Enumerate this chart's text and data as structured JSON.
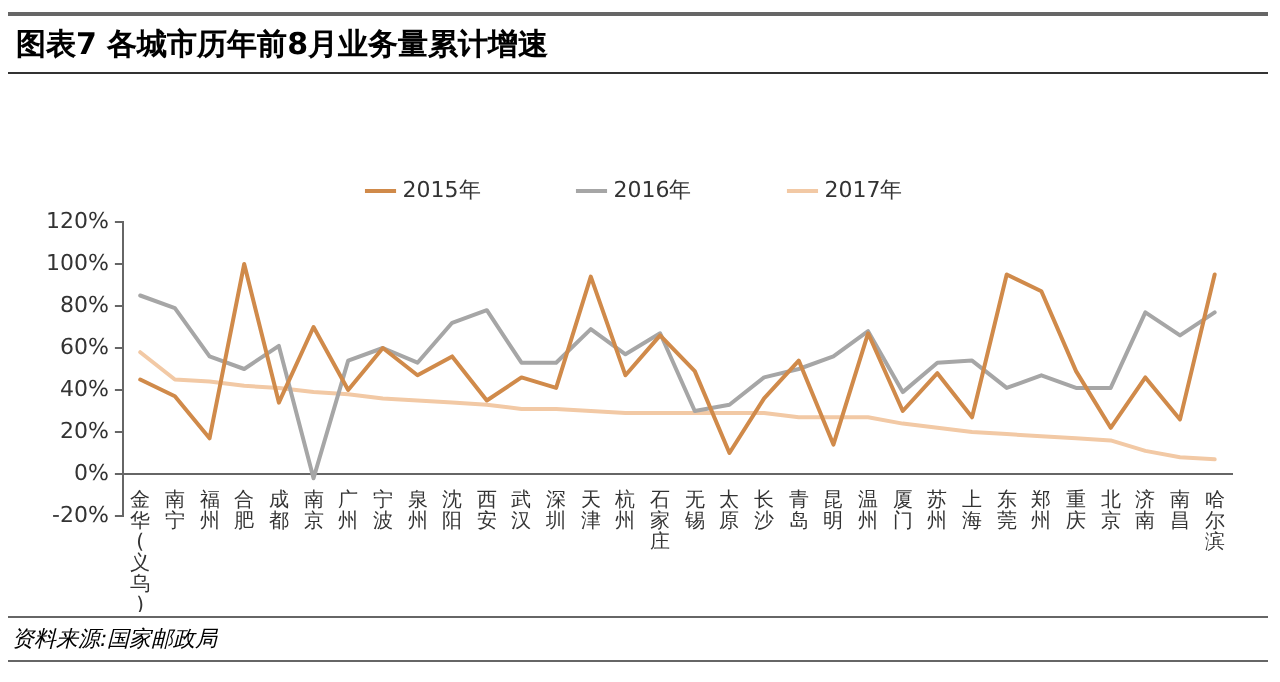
{
  "chart_data": {
    "type": "line",
    "title": "图表7 各城市历年前8月业务量累计增速",
    "categories": [
      "金华(义乌)",
      "南宁",
      "福州",
      "合肥",
      "成都",
      "南京",
      "广州",
      "宁波",
      "泉州",
      "沈阳",
      "西安",
      "武汉",
      "深圳",
      "天津",
      "杭州",
      "石家庄",
      "无锡",
      "太原",
      "长沙",
      "青岛",
      "昆明",
      "温州",
      "厦门",
      "苏州",
      "上海",
      "东莞",
      "郑州",
      "重庆",
      "北京",
      "济南",
      "南昌",
      "哈尔滨"
    ],
    "series": [
      {
        "name": "2015年",
        "color": "#d08a4a",
        "values": [
          45,
          37,
          17,
          100,
          34,
          70,
          40,
          60,
          47,
          56,
          35,
          46,
          41,
          94,
          47,
          66,
          49,
          10,
          36,
          54,
          14,
          67,
          30,
          48,
          27,
          95,
          87,
          49,
          22,
          46,
          26,
          95
        ]
      },
      {
        "name": "2016年",
        "color": "#a6a6a6",
        "values": [
          85,
          79,
          56,
          50,
          61,
          -2,
          54,
          60,
          53,
          72,
          78,
          53,
          53,
          69,
          57,
          67,
          30,
          33,
          46,
          50,
          56,
          68,
          39,
          53,
          54,
          41,
          47,
          41,
          41,
          77,
          66,
          77
        ]
      },
      {
        "name": "2017年",
        "color": "#f2c9a5",
        "values": [
          58,
          45,
          44,
          42,
          41,
          39,
          38,
          36,
          35,
          34,
          33,
          31,
          31,
          30,
          29,
          29,
          29,
          29,
          29,
          27,
          27,
          27,
          24,
          22,
          20,
          19,
          18,
          17,
          16,
          11,
          8,
          7
        ]
      }
    ],
    "ylim": [
      -20,
      120
    ],
    "yticks": [
      {
        "value": -20,
        "label": "-20%"
      },
      {
        "value": 0,
        "label": "0%"
      },
      {
        "value": 20,
        "label": "20%"
      },
      {
        "value": 40,
        "label": "40%"
      },
      {
        "value": 60,
        "label": "60%"
      },
      {
        "value": 80,
        "label": "80%"
      },
      {
        "value": 100,
        "label": "100%"
      },
      {
        "value": 120,
        "label": "120%"
      }
    ],
    "grid": false,
    "legend": "top",
    "marker": "none",
    "line_style": "solid",
    "annotations": [
      "资料来源:国家邮政局"
    ]
  }
}
